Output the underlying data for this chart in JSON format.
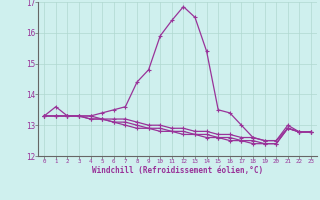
{
  "xlabel": "Windchill (Refroidissement éolien,°C)",
  "background_color": "#cff0ee",
  "grid_color": "#b0d8d0",
  "line_color": "#993399",
  "xlim": [
    -0.5,
    23.5
  ],
  "ylim": [
    12,
    17
  ],
  "xticks": [
    0,
    1,
    2,
    3,
    4,
    5,
    6,
    7,
    8,
    9,
    10,
    11,
    12,
    13,
    14,
    15,
    16,
    17,
    18,
    19,
    20,
    21,
    22,
    23
  ],
  "yticks": [
    12,
    13,
    14,
    15,
    16,
    17
  ],
  "series": [
    [
      13.3,
      13.6,
      13.3,
      13.3,
      13.3,
      13.4,
      13.5,
      13.6,
      14.4,
      14.8,
      15.9,
      16.4,
      16.85,
      16.5,
      15.4,
      13.5,
      13.4,
      13.0,
      12.6,
      12.5,
      12.5,
      13.0,
      12.78,
      12.78
    ],
    [
      13.3,
      13.3,
      13.3,
      13.3,
      13.2,
      13.2,
      13.1,
      13.0,
      12.9,
      12.9,
      12.8,
      12.8,
      12.7,
      12.7,
      12.6,
      12.6,
      12.5,
      12.5,
      12.4,
      12.4,
      12.4,
      12.9,
      12.78,
      12.78
    ],
    [
      13.3,
      13.3,
      13.3,
      13.3,
      13.2,
      13.2,
      13.1,
      13.1,
      13.0,
      12.9,
      12.9,
      12.8,
      12.8,
      12.7,
      12.7,
      12.6,
      12.6,
      12.5,
      12.5,
      12.4,
      12.4,
      12.9,
      12.78,
      12.78
    ],
    [
      13.3,
      13.3,
      13.3,
      13.3,
      13.3,
      13.2,
      13.2,
      13.2,
      13.1,
      13.0,
      13.0,
      12.9,
      12.9,
      12.8,
      12.8,
      12.7,
      12.7,
      12.6,
      12.6,
      12.5,
      12.5,
      12.9,
      12.78,
      12.78
    ]
  ]
}
